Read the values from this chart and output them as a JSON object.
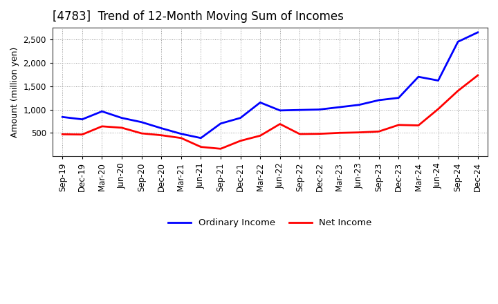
{
  "title": "[4783]  Trend of 12-Month Moving Sum of Incomes",
  "ylabel": "Amount (million yen)",
  "x_labels": [
    "Sep-19",
    "Dec-19",
    "Mar-20",
    "Jun-20",
    "Sep-20",
    "Dec-20",
    "Mar-21",
    "Jun-21",
    "Sep-21",
    "Dec-21",
    "Mar-22",
    "Jun-22",
    "Sep-22",
    "Dec-22",
    "Mar-23",
    "Jun-23",
    "Sep-23",
    "Dec-23",
    "Mar-24",
    "Jun-24",
    "Sep-24",
    "Dec-24"
  ],
  "ordinary_income": [
    840,
    790,
    960,
    820,
    730,
    600,
    480,
    390,
    700,
    820,
    1150,
    980,
    990,
    1000,
    1050,
    1100,
    1200,
    1250,
    1700,
    1620,
    2450,
    2650
  ],
  "net_income": [
    470,
    465,
    640,
    610,
    490,
    450,
    390,
    200,
    160,
    330,
    440,
    690,
    475,
    480,
    500,
    510,
    530,
    670,
    660,
    1010,
    1400,
    1730
  ],
  "ordinary_color": "#0000ff",
  "net_color": "#ff0000",
  "ylim_min": 0,
  "ylim_max": 2750,
  "yticks": [
    500,
    1000,
    1500,
    2000,
    2500
  ],
  "bg_color": "#ffffff",
  "plot_bg_color": "#ffffff",
  "grid_color": "#999999",
  "line_width": 2.0,
  "title_fontsize": 12,
  "title_fontweight": "normal",
  "axis_label_fontsize": 9,
  "tick_fontsize": 8.5,
  "legend_fontsize": 9.5
}
